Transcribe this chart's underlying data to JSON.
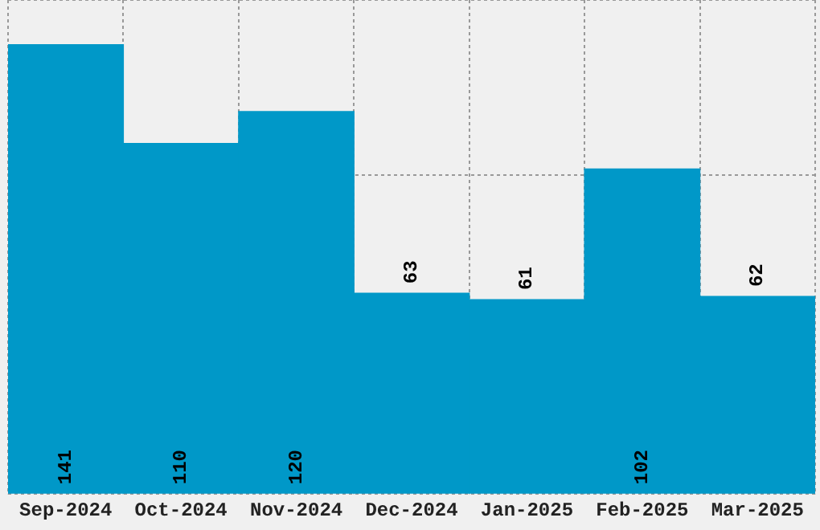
{
  "chart_data": {
    "type": "bar",
    "categories": [
      "Sep-2024",
      "Oct-2024",
      "Nov-2024",
      "Dec-2024",
      "Jan-2025",
      "Feb-2025",
      "Mar-2025"
    ],
    "values": [
      141,
      110,
      120,
      63,
      61,
      102,
      62
    ],
    "color": "#0098c8",
    "ylim": [
      0,
      155
    ],
    "tick_labels": "x",
    "grid": true,
    "data_labels": true
  }
}
